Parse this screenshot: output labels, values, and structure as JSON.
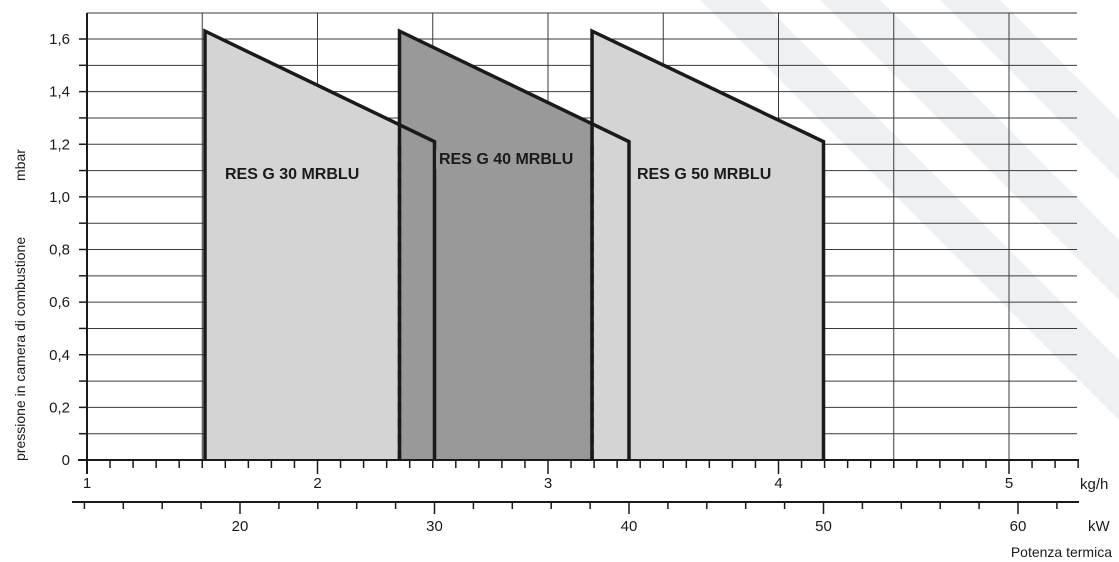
{
  "chart_data": {
    "type": "area",
    "ylabel": "pressione in camera di combustione",
    "yunit": "mbar",
    "x_primary_unit": "kg/h",
    "x_secondary_unit": "kW",
    "x_secondary_title": "Potenza termica",
    "ylim": [
      0,
      1.65
    ],
    "xlim_kgh": [
      1,
      5.35
    ],
    "y_ticks": [
      0,
      0.2,
      0.4,
      0.6,
      0.8,
      1.0,
      1.2,
      1.4,
      1.6
    ],
    "y_tick_labels": [
      "0",
      "0,2",
      "0,4",
      "0,6",
      "0,8",
      "1,0",
      "1,2",
      "1,4",
      "1,6"
    ],
    "x_primary_ticks": [
      1,
      2,
      3,
      4,
      5
    ],
    "x_primary_tick_labels": [
      "1",
      "2",
      "3",
      "4",
      "5"
    ],
    "x_secondary_ticks_kw": [
      20,
      30,
      40,
      50,
      60
    ],
    "x_secondary_tick_labels": [
      "20",
      "30",
      "40",
      "50",
      "60"
    ],
    "grid": true,
    "series": [
      {
        "name": "RES G 30 MRBLU",
        "x_min_kw": 18.2,
        "x_max_kw": 30,
        "y_at_min": 1.63,
        "y_at_max": 1.21,
        "fill": "#d4d4d4"
      },
      {
        "name": "RES G 40 MRBLU",
        "x_min_kw": 28.2,
        "x_max_kw": 40,
        "y_at_min": 1.63,
        "y_at_max": 1.21,
        "fill": "#999999"
      },
      {
        "name": "RES G 50 MRBLU",
        "x_min_kw": 38.1,
        "x_max_kw": 50,
        "y_at_min": 1.63,
        "y_at_max": 1.21,
        "fill": "#d4d4d4"
      }
    ]
  }
}
